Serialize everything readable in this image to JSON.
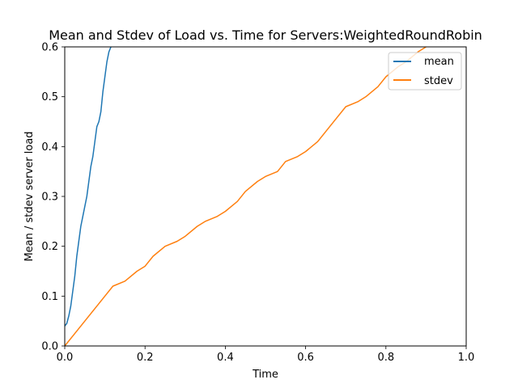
{
  "chart_data": {
    "type": "line",
    "title": "Mean and Stdev of Load vs. Time for Servers:WeightedRoundRobin",
    "xlabel": "Time",
    "ylabel": "Mean / stdev server load",
    "xlim": [
      0.0,
      1.0
    ],
    "ylim": [
      0.0,
      0.6
    ],
    "xticks": [
      "0.0",
      "0.2",
      "0.4",
      "0.6",
      "0.8",
      "1.0"
    ],
    "yticks": [
      "0.0",
      "0.1",
      "0.2",
      "0.3",
      "0.4",
      "0.5",
      "0.6"
    ],
    "grid": false,
    "legend_position": "top-right",
    "series": [
      {
        "name": "mean",
        "color": "#1f77b4",
        "x": [
          0.0,
          0.005,
          0.01,
          0.015,
          0.02,
          0.025,
          0.03,
          0.035,
          0.04,
          0.045,
          0.05,
          0.055,
          0.06,
          0.065,
          0.07,
          0.075,
          0.08,
          0.085,
          0.09,
          0.095,
          0.1,
          0.105,
          0.11,
          0.115
        ],
        "y": [
          0.04,
          0.045,
          0.06,
          0.08,
          0.11,
          0.14,
          0.18,
          0.21,
          0.24,
          0.26,
          0.28,
          0.3,
          0.33,
          0.36,
          0.38,
          0.41,
          0.44,
          0.45,
          0.47,
          0.51,
          0.54,
          0.57,
          0.59,
          0.6
        ]
      },
      {
        "name": "stdev",
        "color": "#ff7f0e",
        "x": [
          0.0,
          0.02,
          0.05,
          0.08,
          0.1,
          0.12,
          0.15,
          0.18,
          0.2,
          0.22,
          0.25,
          0.28,
          0.3,
          0.33,
          0.35,
          0.38,
          0.4,
          0.43,
          0.45,
          0.48,
          0.5,
          0.53,
          0.55,
          0.58,
          0.6,
          0.63,
          0.65,
          0.68,
          0.7,
          0.73,
          0.75,
          0.78,
          0.8,
          0.83,
          0.85,
          0.88,
          0.9
        ],
        "y": [
          0.0,
          0.02,
          0.05,
          0.08,
          0.1,
          0.12,
          0.13,
          0.15,
          0.16,
          0.18,
          0.2,
          0.21,
          0.22,
          0.24,
          0.25,
          0.26,
          0.27,
          0.29,
          0.31,
          0.33,
          0.34,
          0.35,
          0.37,
          0.38,
          0.39,
          0.41,
          0.43,
          0.46,
          0.48,
          0.49,
          0.5,
          0.52,
          0.54,
          0.56,
          0.57,
          0.59,
          0.6
        ]
      }
    ]
  }
}
